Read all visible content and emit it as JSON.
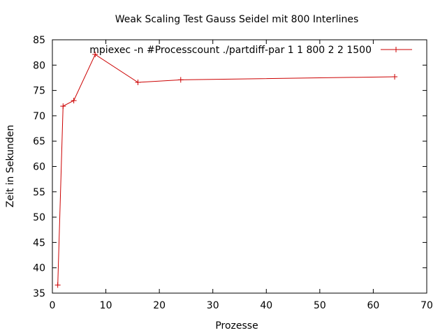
{
  "chart_data": {
    "type": "line",
    "title": "Weak Scaling Test Gauss Seidel mit 800 Interlines",
    "xlabel": "Prozesse",
    "ylabel": "Zeit in Sekunden",
    "xlim": [
      0,
      70
    ],
    "ylim": [
      35,
      85
    ],
    "x_ticks": [
      0,
      10,
      20,
      30,
      40,
      50,
      60,
      70
    ],
    "y_ticks": [
      35,
      40,
      45,
      50,
      55,
      60,
      65,
      70,
      75,
      80,
      85
    ],
    "grid": false,
    "legend_position": "top-right",
    "series": [
      {
        "name": "mpiexec -n #Processcount ./partdiff-par 1 1 800 2 2 1500",
        "color": "#cc0000",
        "marker": "plus",
        "x": [
          1,
          2,
          4,
          8,
          16,
          24,
          64
        ],
        "y": [
          36.6,
          71.9,
          73.0,
          82.1,
          76.6,
          77.1,
          77.7
        ]
      }
    ]
  }
}
